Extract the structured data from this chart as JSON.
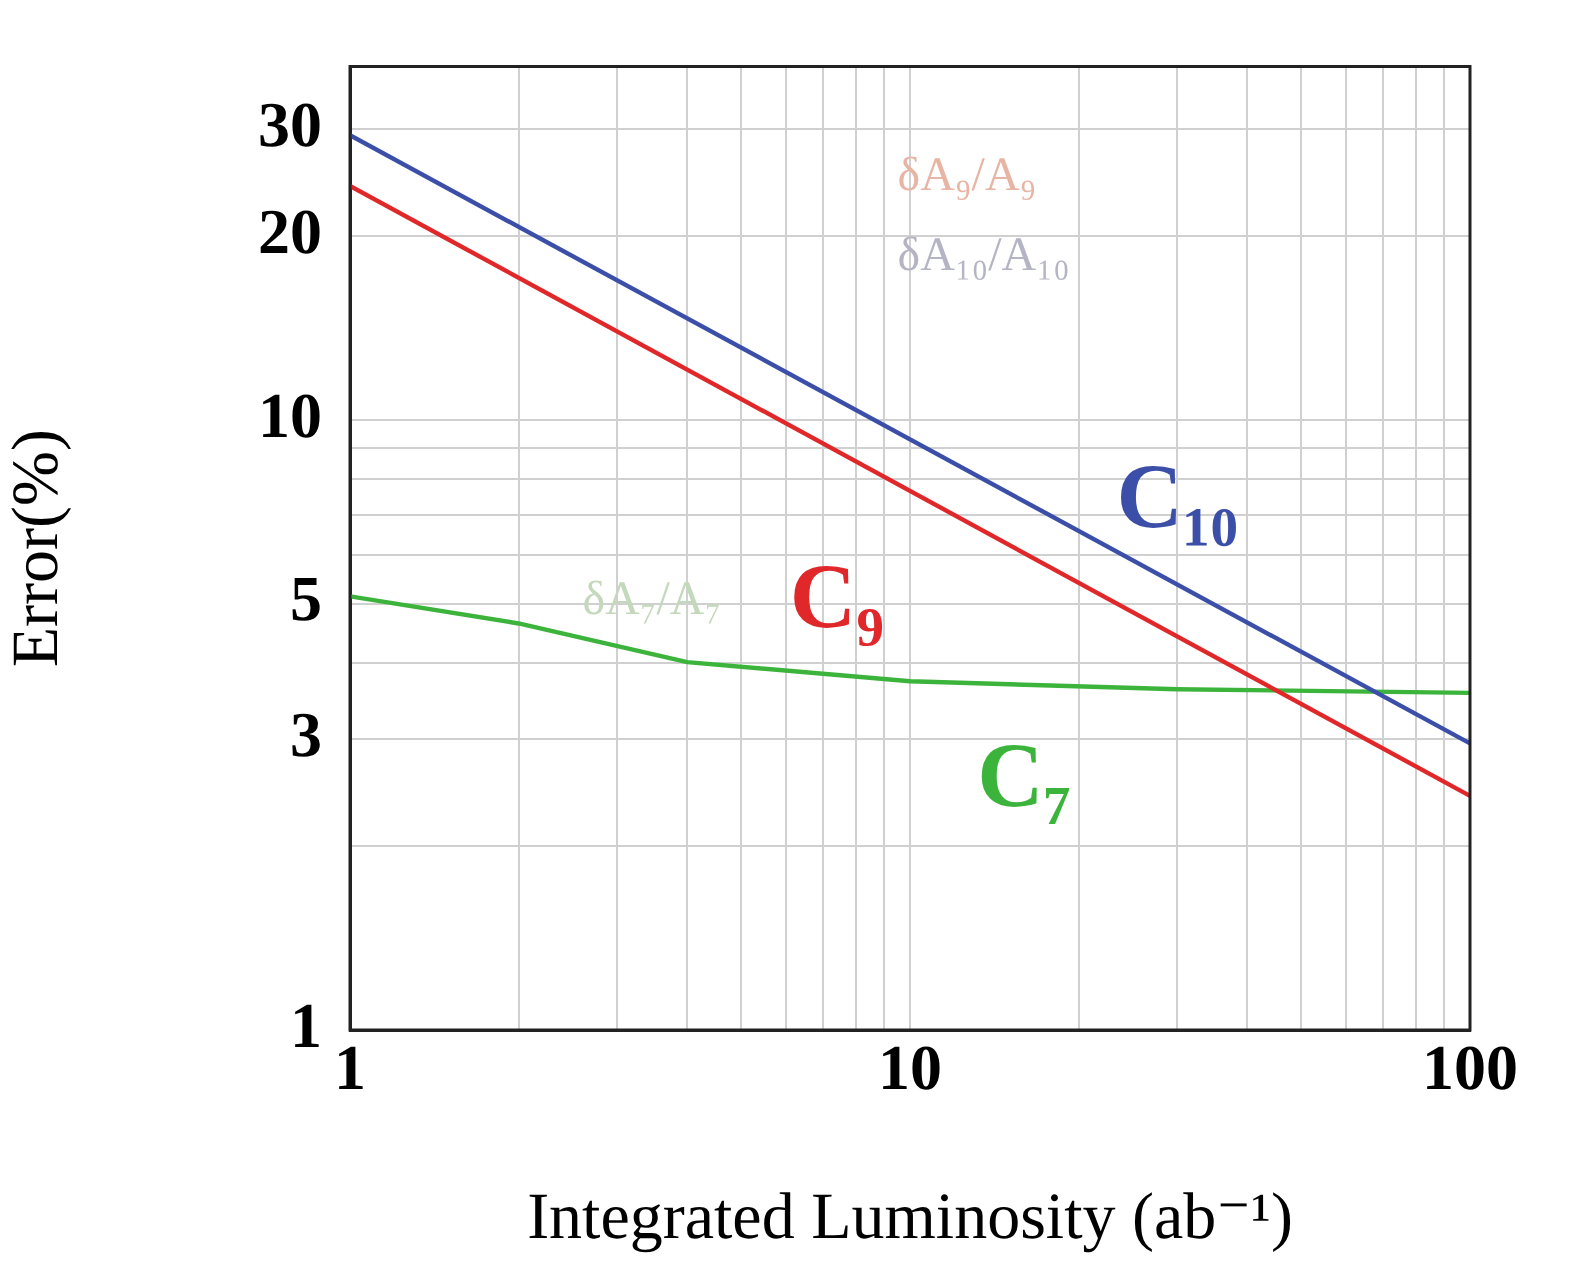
{
  "chart_data": {
    "type": "line",
    "xlabel": "Integrated Luminosity (ab⁻¹)",
    "ylabel": "Error(%)",
    "log": "xy",
    "xlim": [
      1,
      100
    ],
    "ylim": [
      1,
      38
    ],
    "xticks": [
      1,
      {
        "value": 2,
        "label": null
      },
      {
        "value": 3,
        "label": null
      },
      {
        "value": 4,
        "label": null
      },
      {
        "value": 5,
        "label": null
      },
      {
        "value": 6,
        "label": null
      },
      {
        "value": 7,
        "label": null
      },
      {
        "value": 8,
        "label": null
      },
      {
        "value": 9,
        "label": null
      },
      10,
      {
        "value": 20,
        "label": null
      },
      {
        "value": 30,
        "label": null
      },
      {
        "value": 40,
        "label": null
      },
      {
        "value": 50,
        "label": null
      },
      {
        "value": 60,
        "label": null
      },
      {
        "value": 70,
        "label": null
      },
      {
        "value": 80,
        "label": null
      },
      {
        "value": 90,
        "label": null
      },
      100
    ],
    "yticks": [
      1,
      {
        "value": 2,
        "label": null
      },
      3,
      {
        "value": 4,
        "label": null
      },
      5,
      {
        "value": 6,
        "label": null
      },
      {
        "value": 7,
        "label": null
      },
      {
        "value": 8,
        "label": null
      },
      {
        "value": 9,
        "label": null
      },
      10,
      20,
      30
    ],
    "grid": true,
    "legend": false,
    "marker": "none",
    "line_style": "solid",
    "annotations": [
      "δA₉/A₉",
      "δA₁₀/A₁₀",
      "δA₇/A₇"
    ],
    "series": [
      {
        "name": "C₁₀",
        "color": "#3b4fa8",
        "x": [
          1,
          100
        ],
        "values": [
          29.3,
          2.95
        ]
      },
      {
        "name": "C₉",
        "color": "#e0282a",
        "x": [
          1,
          100
        ],
        "values": [
          24.2,
          2.42
        ]
      },
      {
        "name": "C₇",
        "color": "#3cb43c",
        "x": [
          1,
          2,
          4,
          10,
          30,
          100
        ],
        "values": [
          5.14,
          4.64,
          4.01,
          3.73,
          3.62,
          3.57
        ]
      }
    ]
  }
}
